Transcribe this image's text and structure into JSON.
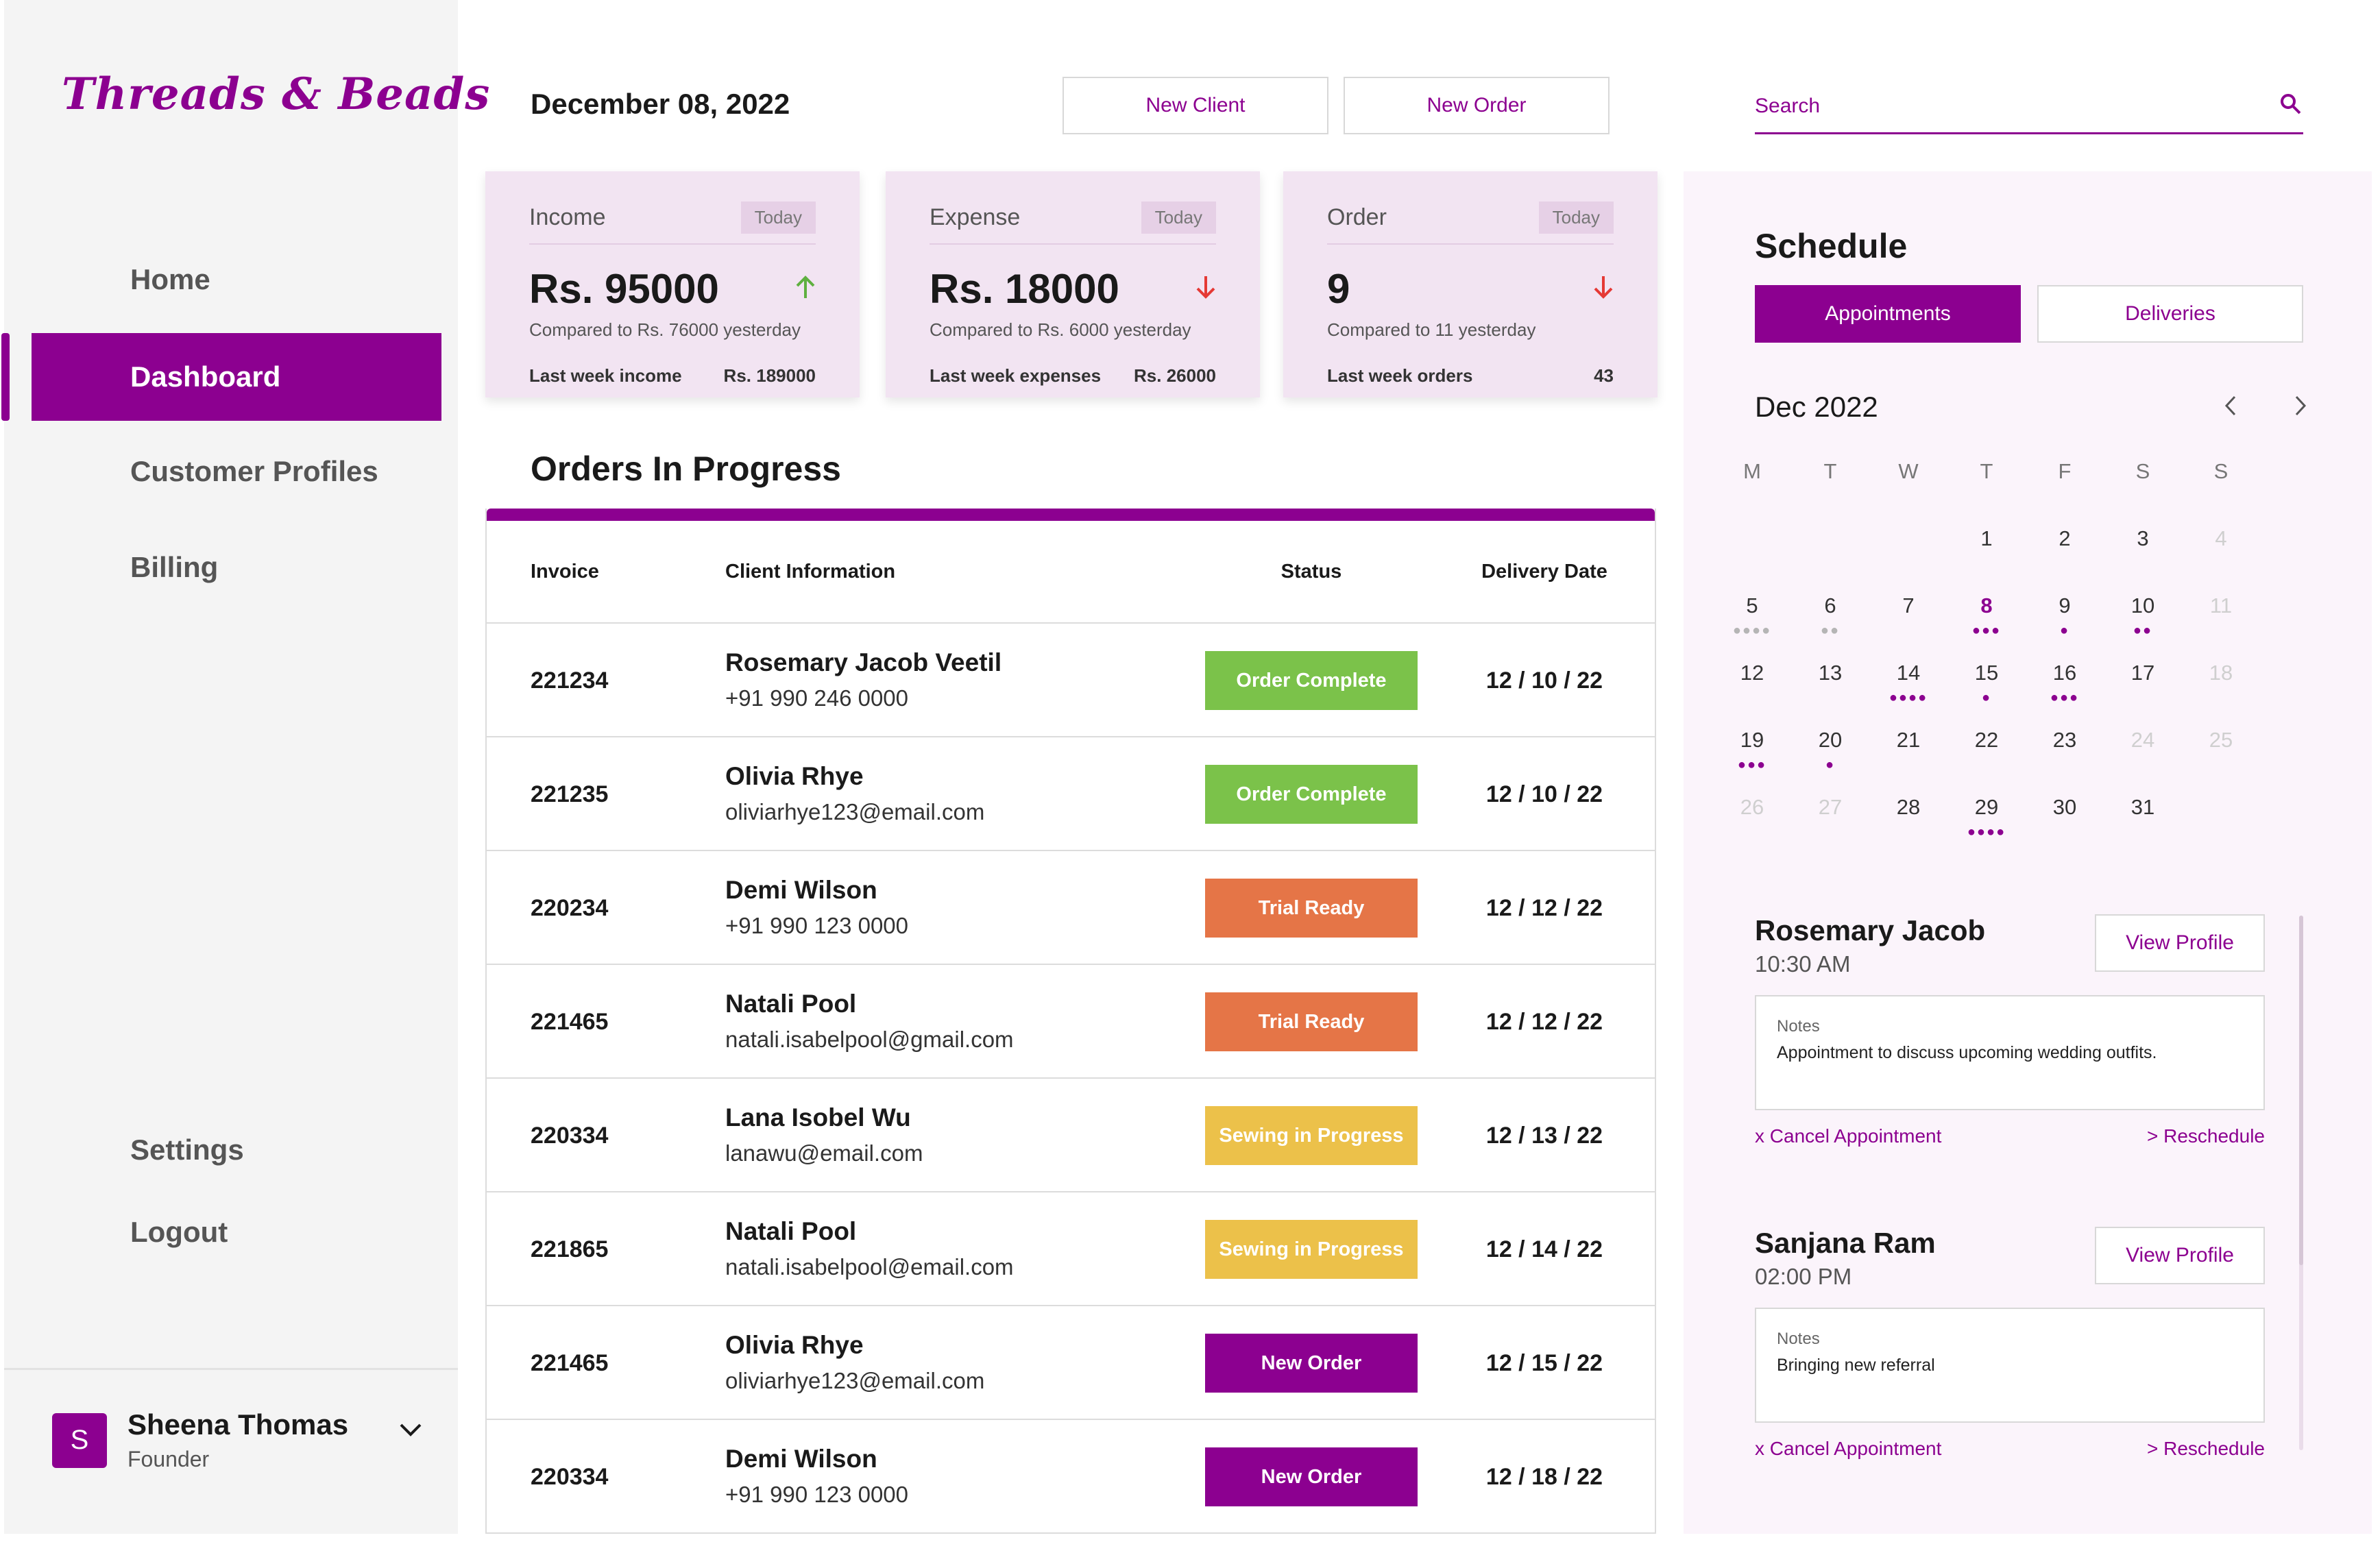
{
  "app": {
    "logo": "Threads & Beads"
  },
  "sidebar": {
    "items": [
      {
        "label": "Home"
      },
      {
        "label": "Dashboard"
      },
      {
        "label": "Customer Profiles"
      },
      {
        "label": "Billing"
      },
      {
        "label": "Settings"
      },
      {
        "label": "Logout"
      }
    ],
    "active": "Dashboard",
    "user": {
      "initial": "S",
      "name": "Sheena Thomas",
      "role": "Founder"
    }
  },
  "header": {
    "date": "December 08, 2022",
    "new_client_label": "New Client",
    "new_order_label": "New Order",
    "search_placeholder": "Search"
  },
  "stats": [
    {
      "title": "Income",
      "tag": "Today",
      "value": "Rs. 95000",
      "trend": "up",
      "compare": "Compared to Rs. 76000 yesterday",
      "foot_label": "Last week income",
      "foot_value": "Rs. 189000"
    },
    {
      "title": "Expense",
      "tag": "Today",
      "value": "Rs. 18000",
      "trend": "down",
      "compare": "Compared to Rs. 6000 yesterday",
      "foot_label": "Last week expenses",
      "foot_value": "Rs. 26000"
    },
    {
      "title": "Order",
      "tag": "Today",
      "value": "9",
      "trend": "down",
      "compare": "Compared to 11 yesterday",
      "foot_label": "Last week orders",
      "foot_value": "43"
    }
  ],
  "orders": {
    "title": "Orders In Progress",
    "columns": [
      "Invoice",
      "Client Information",
      "Status",
      "Delivery Date"
    ],
    "rows": [
      {
        "invoice": "221234",
        "name": "Rosemary Jacob Veetil",
        "contact": "+91 990 246 0000",
        "status": "Order Complete",
        "status_color": "#7bc24a",
        "date": "12 / 10 / 22"
      },
      {
        "invoice": "221235",
        "name": "Olivia Rhye",
        "contact": "oliviarhye123@email.com",
        "status": "Order Complete",
        "status_color": "#7bc24a",
        "date": "12 / 10 / 22"
      },
      {
        "invoice": "220234",
        "name": "Demi Wilson",
        "contact": "+91 990 123 0000",
        "status": "Trial Ready",
        "status_color": "#e57547",
        "date": "12 / 12 / 22"
      },
      {
        "invoice": "221465",
        "name": "Natali Pool",
        "contact": "natali.isabelpool@gmail.com",
        "status": "Trial Ready",
        "status_color": "#e57547",
        "date": "12 / 12 / 22"
      },
      {
        "invoice": "220334",
        "name": "Lana Isobel Wu",
        "contact": "lanawu@email.com",
        "status": "Sewing in Progress",
        "status_color": "#ecc14a",
        "date": "12 / 13 / 22"
      },
      {
        "invoice": "221865",
        "name": "Natali Pool",
        "contact": "natali.isabelpool@email.com",
        "status": "Sewing in Progress",
        "status_color": "#ecc14a",
        "date": "12 / 14 / 22"
      },
      {
        "invoice": "221465",
        "name": "Olivia Rhye",
        "contact": "oliviarhye123@email.com",
        "status": "New Order",
        "status_color": "#8c0090",
        "date": "12 / 15 / 22"
      },
      {
        "invoice": "220334",
        "name": "Demi Wilson",
        "contact": "+91 990 123 0000",
        "status": "New Order",
        "status_color": "#8c0090",
        "date": "12 / 18 / 22"
      }
    ]
  },
  "schedule": {
    "title": "Schedule",
    "tabs": [
      "Appointments",
      "Deliveries"
    ],
    "active_tab": "Appointments",
    "month": "Dec 2022",
    "weekdays": [
      "M",
      "T",
      "W",
      "T",
      "F",
      "S",
      "S"
    ],
    "weeks": [
      [
        {
          "d": ""
        },
        {
          "d": ""
        },
        {
          "d": ""
        },
        {
          "d": "1"
        },
        {
          "d": "2"
        },
        {
          "d": "3"
        },
        {
          "d": "4",
          "dim": true
        }
      ],
      [
        {
          "d": "5",
          "dots": 4,
          "grey": true
        },
        {
          "d": "6",
          "dots": 2,
          "grey": true
        },
        {
          "d": "7"
        },
        {
          "d": "8",
          "dots": 3,
          "today": true
        },
        {
          "d": "9",
          "dots": 1
        },
        {
          "d": "10",
          "dots": 2
        },
        {
          "d": "11",
          "dim": true
        }
      ],
      [
        {
          "d": "12"
        },
        {
          "d": "13"
        },
        {
          "d": "14",
          "dots": 4
        },
        {
          "d": "15",
          "dots": 1
        },
        {
          "d": "16",
          "dots": 3
        },
        {
          "d": "17"
        },
        {
          "d": "18",
          "dim": true
        }
      ],
      [
        {
          "d": "19",
          "dots": 3
        },
        {
          "d": "20",
          "dots": 1
        },
        {
          "d": "21"
        },
        {
          "d": "22"
        },
        {
          "d": "23"
        },
        {
          "d": "24",
          "dim": true
        },
        {
          "d": "25",
          "dim": true
        }
      ],
      [
        {
          "d": "26",
          "dim": true
        },
        {
          "d": "27",
          "dim": true
        },
        {
          "d": "28"
        },
        {
          "d": "29",
          "dots": 4
        },
        {
          "d": "30"
        },
        {
          "d": "31"
        },
        {
          "d": ""
        }
      ]
    ],
    "appointments": [
      {
        "name": "Rosemary Jacob",
        "time": "10:30 AM",
        "view_label": "View Profile",
        "notes_label": "Notes",
        "notes": "Appointment to discuss upcoming wedding outfits.",
        "cancel_label": "x Cancel Appointment",
        "reschedule_label": "> Reschedule"
      },
      {
        "name": "Sanjana Ram",
        "time": "02:00 PM",
        "view_label": "View Profile",
        "notes_label": "Notes",
        "notes": "Bringing new referral",
        "cancel_label": "x Cancel Appointment",
        "reschedule_label": "> Reschedule"
      }
    ]
  },
  "colors": {
    "brand": "#8c0090",
    "complete": "#7bc24a",
    "trial": "#e57547",
    "sewing": "#ecc14a",
    "up": "#5fb040",
    "down": "#e53935"
  },
  "icons": [
    "search-icon",
    "arrow-up-icon",
    "arrow-down-icon",
    "chevron-left-icon",
    "chevron-right-icon",
    "chevron-down-icon"
  ]
}
